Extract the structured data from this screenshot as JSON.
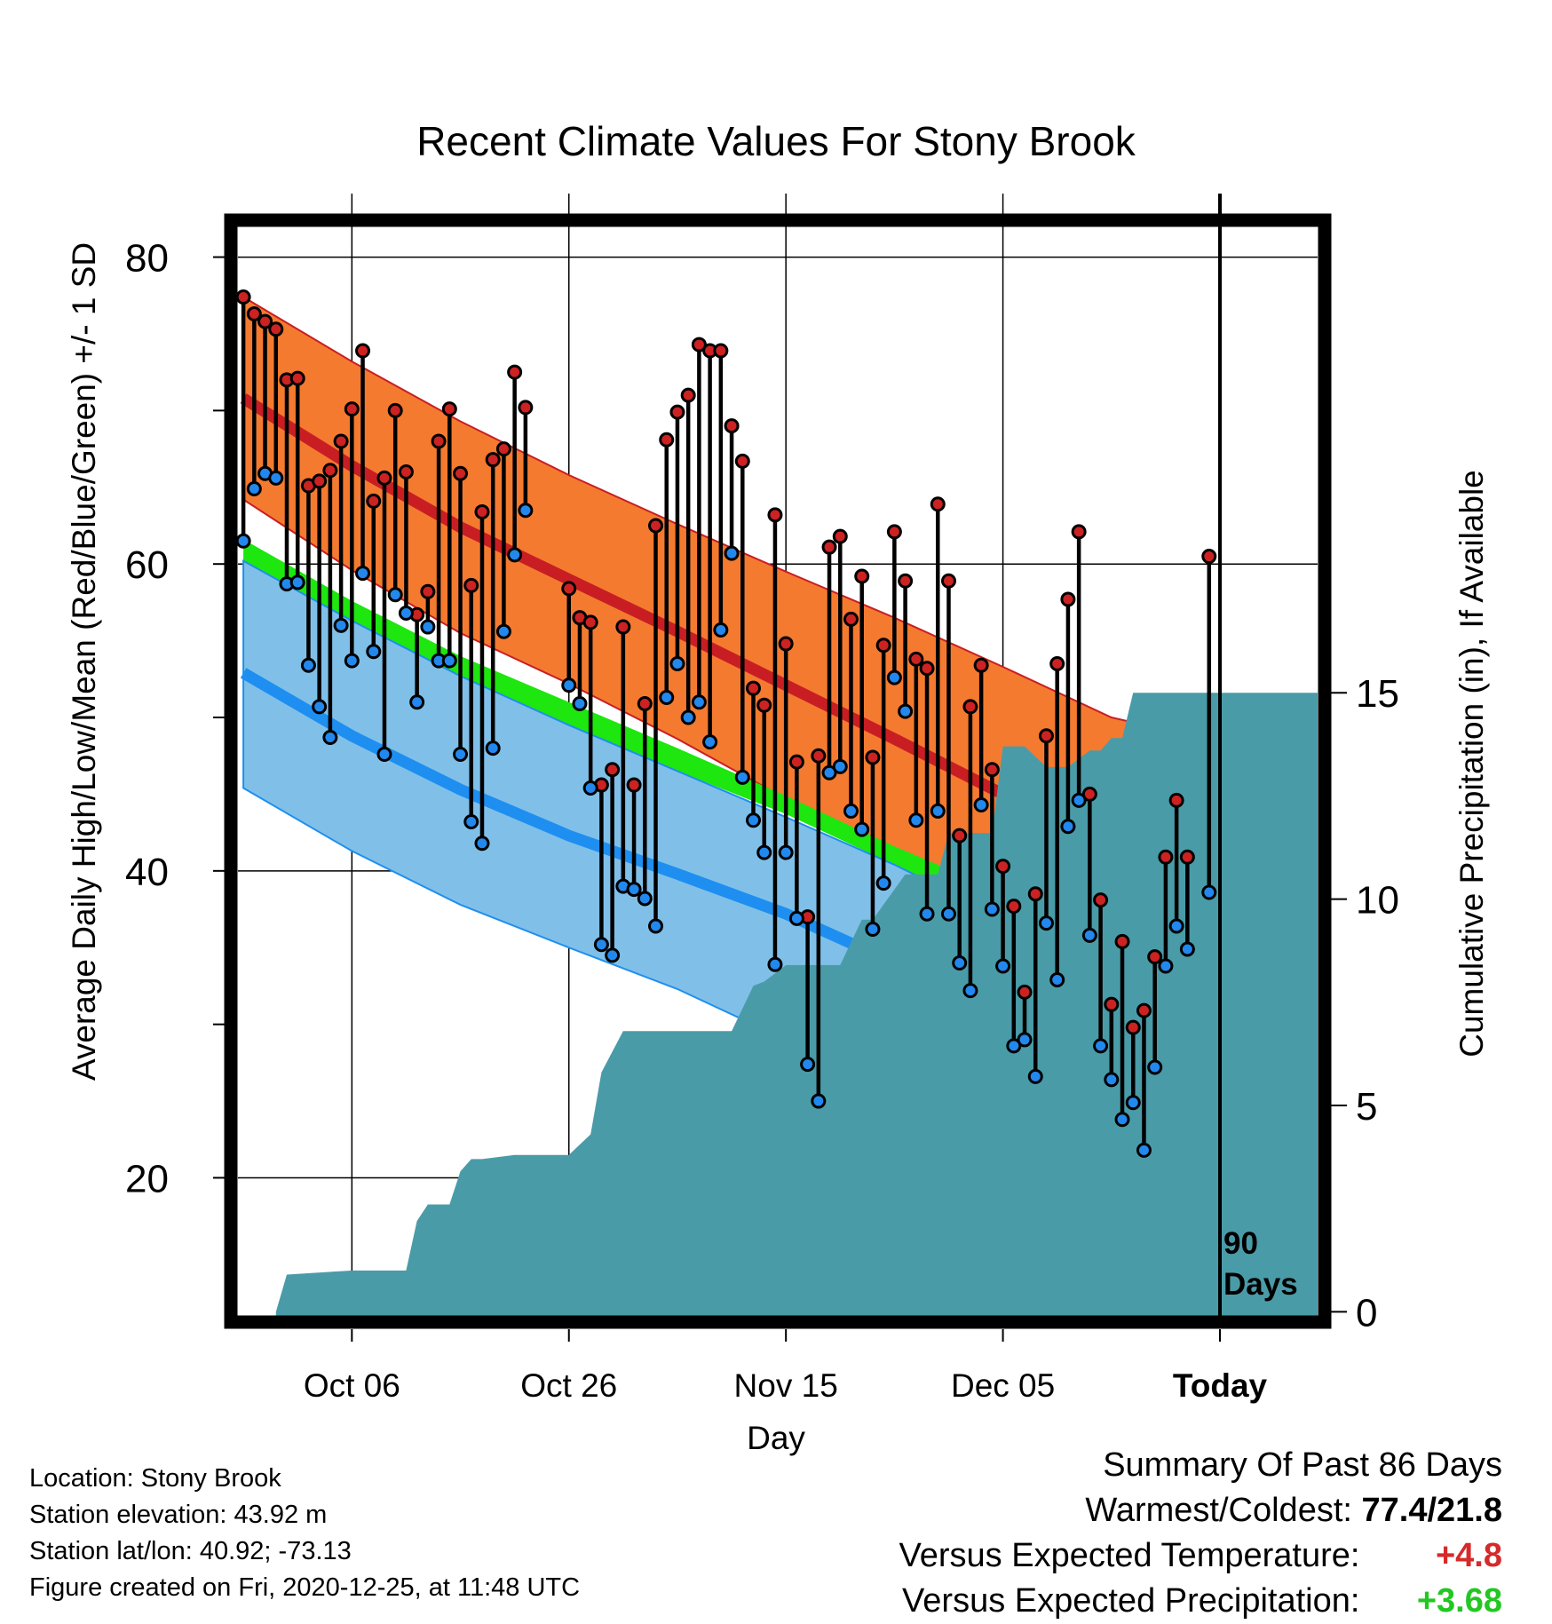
{
  "chart_data": {
    "type": "line",
    "title": "Recent Climate Values For Stony Brook",
    "xlabel": "Day",
    "ylabel": "Average Daily High/Low/Mean (Red/Blue/Green) +/- 1 SD",
    "y2label": "Cumulative Precipitation (in), If Available",
    "ylim": [
      11,
      82
    ],
    "y2lim": [
      -0.1,
      26.3
    ],
    "xlim": [
      -0.5,
      99
    ],
    "yticks": [
      20,
      40,
      60,
      80
    ],
    "y2ticks": [
      0,
      5,
      10,
      15
    ],
    "xticks": [
      {
        "day": 10,
        "label": "Oct 06"
      },
      {
        "day": 30,
        "label": "Oct 26"
      },
      {
        "day": 50,
        "label": "Nov 15"
      },
      {
        "day": 70,
        "label": "Dec 05"
      },
      {
        "day": 90,
        "label": "Today"
      }
    ],
    "today_label": [
      "90",
      "Days"
    ],
    "grid": true,
    "colors": {
      "high_band": "#f47a30",
      "high_line": "#c81e23",
      "low_band": "#80c0e8",
      "low_line": "#1e8ff0",
      "mean_band": "#1ee60f",
      "precip": "#4a9ba8",
      "high_marker": "#cc2222",
      "low_marker": "#2288ee"
    },
    "normal_high": {
      "x": [
        0,
        10,
        20,
        30,
        40,
        50,
        60,
        70,
        80,
        90,
        99
      ],
      "mean": [
        70.8,
        66.4,
        62.4,
        59.0,
        55.6,
        52.1,
        48.6,
        45.0,
        41.5,
        39.6,
        38.1
      ],
      "upper": [
        77.4,
        73.2,
        69.3,
        65.8,
        62.6,
        59.5,
        56.5,
        53.3,
        50.0,
        48.4,
        47.8
      ],
      "lower": [
        64.2,
        59.6,
        55.5,
        52.2,
        48.6,
        44.7,
        40.7,
        36.7,
        33.0,
        33.0,
        33.0
      ]
    },
    "normal_mean": {
      "x": [
        0,
        10,
        20,
        30,
        40,
        50,
        60,
        70,
        80,
        84,
        90,
        99
      ],
      "upper": [
        61.6,
        57.6,
        54.0,
        51.0,
        48.0,
        44.9,
        41.6,
        38.6,
        35.0,
        33.6,
        33.0,
        33.0
      ],
      "lower": [
        60.0,
        56.3,
        52.6,
        49.5,
        46.5,
        43.7,
        40.4,
        37.2,
        33.8,
        33.0,
        33.0,
        33.0
      ]
    },
    "normal_low": {
      "x": [
        0,
        10,
        20,
        30,
        40,
        50,
        60,
        70,
        74,
        80,
        84,
        90,
        99
      ],
      "mean": [
        52.9,
        48.8,
        45.3,
        42.3,
        39.8,
        37.2,
        34.0,
        30.6,
        29.8,
        30.3,
        33.0,
        33.0,
        33.0
      ],
      "upper": [
        60.2,
        56.3,
        52.7,
        49.5,
        46.5,
        43.5,
        40.4,
        36.9,
        35.6,
        33.6,
        33.0,
        33.0,
        33.0
      ],
      "lower": [
        45.4,
        41.3,
        37.8,
        35.0,
        32.3,
        29.0,
        26.0,
        26.0,
        26.0,
        26.0,
        26.0,
        26.0,
        26.0
      ]
    },
    "daily": {
      "start_day": 0,
      "high": [
        77.4,
        76.3,
        75.8,
        75.3,
        72.0,
        72.1,
        65.1,
        65.4,
        66.1,
        68.0,
        70.1,
        73.9,
        64.1,
        65.6,
        70.0,
        66.0,
        56.7,
        58.2,
        68.0,
        70.1,
        65.9,
        58.6,
        63.4,
        66.8,
        67.5,
        72.5,
        70.2,
        null,
        null,
        null,
        58.4,
        56.5,
        56.2,
        45.6,
        46.6,
        55.9,
        45.6,
        50.9,
        62.5,
        68.1,
        69.9,
        71.0,
        74.3,
        73.9,
        73.9,
        69.0,
        66.7,
        51.9,
        50.8,
        63.2,
        54.8,
        47.1,
        37.0,
        47.5,
        61.1,
        61.8,
        56.4,
        59.2,
        47.4,
        54.7,
        62.1,
        58.9,
        53.8,
        53.2,
        63.9,
        58.9,
        42.3,
        50.7,
        53.4,
        46.6,
        40.3,
        37.7,
        32.1,
        38.5,
        48.8,
        53.5,
        57.7,
        62.1,
        45.0,
        38.1,
        31.3,
        35.4,
        29.8,
        30.9,
        34.4,
        40.9,
        44.6,
        40.9,
        null,
        60.5
      ],
      "low": [
        61.5,
        64.9,
        65.9,
        65.6,
        58.7,
        58.8,
        53.4,
        50.7,
        48.7,
        56.0,
        53.7,
        59.4,
        54.3,
        47.6,
        58.0,
        56.8,
        51.0,
        55.9,
        53.7,
        53.7,
        47.6,
        43.2,
        41.8,
        48.0,
        55.6,
        60.6,
        63.5,
        null,
        null,
        null,
        52.1,
        50.9,
        45.4,
        35.2,
        34.5,
        39.0,
        38.8,
        38.2,
        36.4,
        51.3,
        53.5,
        50.0,
        51.0,
        48.4,
        55.7,
        60.7,
        46.1,
        43.3,
        41.2,
        33.9,
        41.2,
        36.9,
        27.4,
        25.0,
        46.4,
        46.8,
        43.9,
        42.7,
        36.2,
        39.2,
        52.6,
        50.4,
        43.3,
        37.2,
        43.9,
        37.2,
        34.0,
        32.2,
        44.3,
        37.5,
        33.8,
        28.6,
        29.0,
        26.6,
        36.6,
        32.9,
        42.9,
        44.6,
        35.8,
        28.6,
        26.4,
        23.8,
        24.9,
        21.8,
        27.2,
        33.8,
        36.4,
        34.9,
        null,
        38.6
      ]
    },
    "precip": {
      "x": [
        3,
        4,
        10,
        15,
        16,
        17,
        19,
        20,
        21,
        22,
        25,
        30,
        32,
        33,
        34,
        35,
        36,
        38,
        39,
        41,
        45,
        47,
        48,
        50,
        53,
        55,
        57,
        58,
        61,
        62,
        64,
        65,
        67,
        69,
        70,
        72,
        74,
        76,
        78,
        79,
        80,
        81,
        82,
        83,
        84,
        85,
        88,
        89,
        92,
        99
      ],
      "y": [
        0.0,
        0.9,
        1.0,
        1.0,
        2.2,
        2.6,
        2.6,
        3.4,
        3.7,
        3.7,
        3.8,
        3.8,
        4.3,
        5.8,
        6.3,
        6.8,
        6.8,
        6.8,
        6.8,
        6.8,
        6.8,
        7.9,
        8.0,
        8.4,
        8.4,
        8.4,
        9.5,
        9.5,
        10.6,
        10.6,
        10.6,
        11.6,
        11.6,
        11.6,
        13.7,
        13.7,
        13.2,
        13.2,
        13.6,
        13.6,
        13.9,
        13.9,
        15.0,
        15.0,
        15.0,
        15.0,
        15.0,
        15.0,
        15.0,
        15.0
      ]
    }
  },
  "info": {
    "location": "Location: Stony Brook",
    "elevation": "Station elevation: 43.92 m",
    "latlon": "Station lat/lon: 40.92; -73.13",
    "created": "Figure created on Fri, 2020-12-25, at 11:48 UTC"
  },
  "summary": {
    "heading": "Summary Of Past 86 Days",
    "extremes_label": "Warmest/Coldest:",
    "extremes_value": "77.4/21.8",
    "temp_label": "Versus Expected Temperature:",
    "temp_value": "+4.8",
    "precip_label": "Versus Expected Precipitation:",
    "precip_value": "+3.68"
  }
}
